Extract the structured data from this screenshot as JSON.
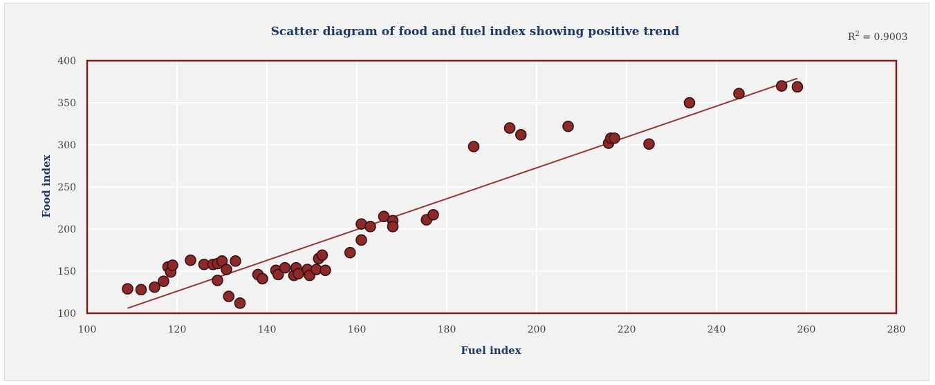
{
  "chart_data": {
    "type": "scatter",
    "title": "Scatter diagram of food and fuel index showing positive trend",
    "xlabel": "Fuel index",
    "ylabel": "Food index",
    "xlim": [
      100,
      280
    ],
    "ylim": [
      100,
      400
    ],
    "xticks": [
      100,
      120,
      140,
      160,
      180,
      200,
      220,
      240,
      260,
      280
    ],
    "yticks": [
      100,
      150,
      200,
      250,
      300,
      350,
      400
    ],
    "grid": true,
    "annotation": {
      "prefix": "R",
      "sup": "2",
      "suffix": " = 0.9003"
    },
    "trendline": {
      "x": [
        109,
        258
      ],
      "y": [
        106,
        379
      ]
    },
    "colors": {
      "point": "#8b2a2a",
      "point_edge": "#3a0f0f",
      "trend": "#943634",
      "grid": "#ffffff",
      "plot_bg": "#f2f2f2"
    },
    "points": [
      {
        "x": 109,
        "y": 129
      },
      {
        "x": 112,
        "y": 128
      },
      {
        "x": 115,
        "y": 131
      },
      {
        "x": 117,
        "y": 138
      },
      {
        "x": 118,
        "y": 155
      },
      {
        "x": 118.6,
        "y": 149
      },
      {
        "x": 119,
        "y": 157
      },
      {
        "x": 123,
        "y": 163
      },
      {
        "x": 126,
        "y": 158
      },
      {
        "x": 128,
        "y": 158
      },
      {
        "x": 129,
        "y": 159
      },
      {
        "x": 129,
        "y": 139
      },
      {
        "x": 130,
        "y": 162
      },
      {
        "x": 131,
        "y": 152
      },
      {
        "x": 131.5,
        "y": 120
      },
      {
        "x": 133,
        "y": 162
      },
      {
        "x": 134,
        "y": 112
      },
      {
        "x": 138,
        "y": 146
      },
      {
        "x": 139,
        "y": 141
      },
      {
        "x": 142,
        "y": 151
      },
      {
        "x": 142.5,
        "y": 146
      },
      {
        "x": 144,
        "y": 154
      },
      {
        "x": 146,
        "y": 145
      },
      {
        "x": 146.5,
        "y": 154
      },
      {
        "x": 147,
        "y": 147
      },
      {
        "x": 149,
        "y": 152
      },
      {
        "x": 149.5,
        "y": 145
      },
      {
        "x": 151,
        "y": 152
      },
      {
        "x": 151.5,
        "y": 165
      },
      {
        "x": 152.3,
        "y": 169
      },
      {
        "x": 153,
        "y": 151
      },
      {
        "x": 158.5,
        "y": 172
      },
      {
        "x": 161,
        "y": 187
      },
      {
        "x": 161,
        "y": 206
      },
      {
        "x": 163,
        "y": 203
      },
      {
        "x": 166,
        "y": 215
      },
      {
        "x": 168,
        "y": 210
      },
      {
        "x": 168,
        "y": 203
      },
      {
        "x": 175.5,
        "y": 211
      },
      {
        "x": 177,
        "y": 217
      },
      {
        "x": 186,
        "y": 298
      },
      {
        "x": 194,
        "y": 320
      },
      {
        "x": 196.5,
        "y": 312
      },
      {
        "x": 207,
        "y": 322
      },
      {
        "x": 216,
        "y": 302
      },
      {
        "x": 216.5,
        "y": 308
      },
      {
        "x": 217.3,
        "y": 308
      },
      {
        "x": 225,
        "y": 301
      },
      {
        "x": 234,
        "y": 350
      },
      {
        "x": 245,
        "y": 361
      },
      {
        "x": 254.5,
        "y": 370
      },
      {
        "x": 258,
        "y": 369
      }
    ]
  }
}
